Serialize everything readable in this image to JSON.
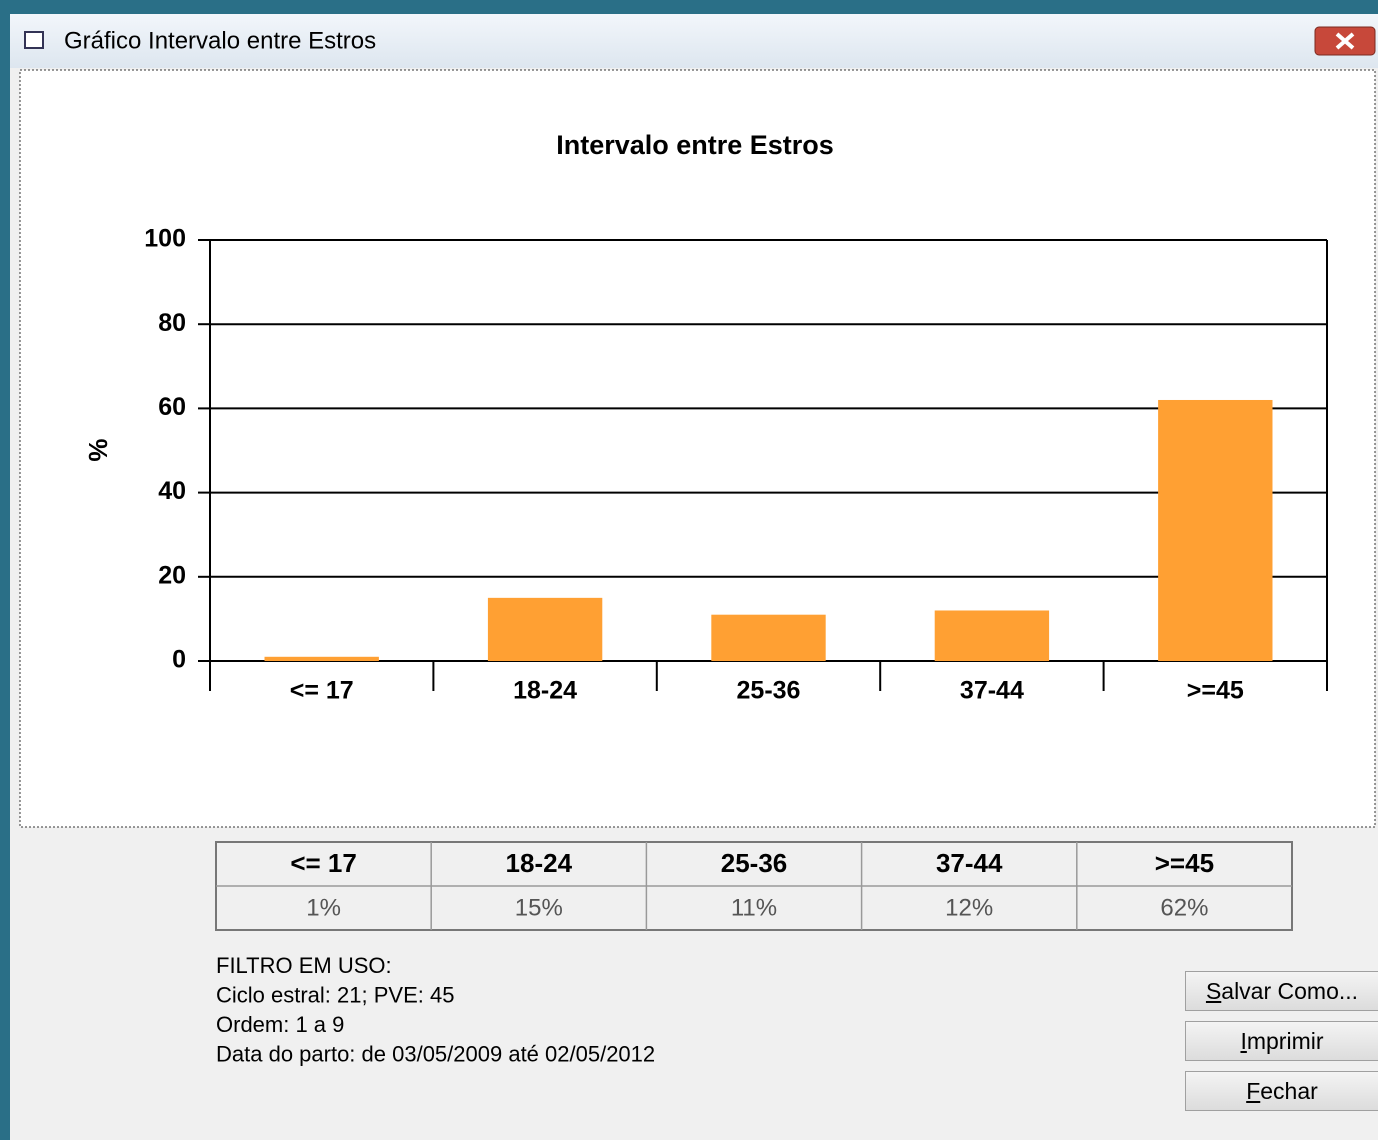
{
  "window": {
    "title": "Gráfico Intervalo entre Estros"
  },
  "chart_data": {
    "type": "bar",
    "title": "Intervalo entre Estros",
    "y_label": "%",
    "categories": [
      "<= 17",
      "18-24",
      "25-36",
      "37-44",
      ">=45"
    ],
    "values": [
      1,
      15,
      11,
      12,
      62
    ],
    "value_labels": [
      "1%",
      "15%",
      "11%",
      "12%",
      "62%"
    ],
    "color": "#ffa033",
    "ylim": [
      0,
      100
    ],
    "yticks": [
      0,
      20,
      40,
      60,
      80,
      100
    ],
    "grid": true
  },
  "filter": [
    "FILTRO EM USO:",
    "Ciclo estral: 21; PVE: 45",
    "Ordem: 1 a 9",
    "Data do parto: de 03/05/2009 até 02/05/2012"
  ],
  "buttons": [
    "Salvar Como...",
    "Imprimir",
    "Fechar"
  ]
}
